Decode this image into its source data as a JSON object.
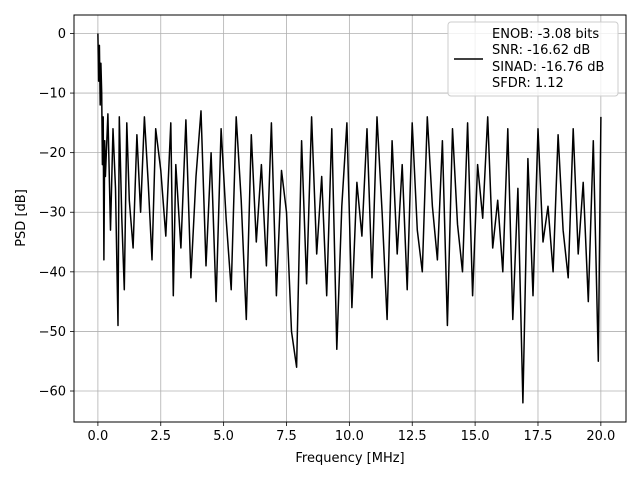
{
  "chart_data": {
    "type": "line",
    "title": "",
    "xlabel": "Frequency [MHz]",
    "ylabel": "PSD [dB]",
    "xlim": [
      -0.95,
      21.0
    ],
    "ylim": [
      -65.2,
      3.1
    ],
    "grid": true,
    "legend_position": "top-right",
    "x_ticks": [
      0.0,
      2.5,
      5.0,
      7.5,
      10.0,
      12.5,
      15.0,
      17.5,
      20.0
    ],
    "x_tick_labels": [
      "0.0",
      "2.5",
      "5.0",
      "7.5",
      "10.0",
      "12.5",
      "15.0",
      "17.5",
      "20.0"
    ],
    "y_ticks": [
      0,
      -10,
      -20,
      -30,
      -40,
      -50,
      -60
    ],
    "y_tick_labels": [
      "0",
      "−10",
      "−20",
      "−30",
      "−40",
      "−50",
      "−60"
    ],
    "series": [
      {
        "color": "#000000",
        "description": "noise-like PSD trace, peak 0 dB near 0 MHz, floor mostly between -13 and -35 dB",
        "x": [
          0.0,
          0.03,
          0.06,
          0.09,
          0.12,
          0.15,
          0.18,
          0.21,
          0.24,
          0.27,
          0.3,
          0.4,
          0.5,
          0.6,
          0.7,
          0.8,
          0.85,
          0.95,
          1.05,
          1.15,
          1.25,
          1.4,
          1.55,
          1.7,
          1.85,
          2.0,
          2.15,
          2.3,
          2.5,
          2.7,
          2.9,
          3.0,
          3.1,
          3.3,
          3.5,
          3.7,
          3.9,
          4.1,
          4.3,
          4.5,
          4.7,
          4.9,
          5.1,
          5.3,
          5.5,
          5.7,
          5.9,
          6.1,
          6.3,
          6.5,
          6.7,
          6.9,
          7.1,
          7.3,
          7.5,
          7.7,
          7.9,
          8.1,
          8.3,
          8.5,
          8.7,
          8.9,
          9.1,
          9.3,
          9.5,
          9.7,
          9.9,
          10.1,
          10.3,
          10.5,
          10.7,
          10.9,
          11.1,
          11.3,
          11.5,
          11.7,
          11.9,
          12.1,
          12.3,
          12.5,
          12.7,
          12.9,
          13.1,
          13.3,
          13.5,
          13.7,
          13.9,
          14.1,
          14.3,
          14.5,
          14.7,
          14.9,
          15.1,
          15.3,
          15.5,
          15.7,
          15.9,
          16.1,
          16.3,
          16.5,
          16.7,
          16.9,
          17.1,
          17.3,
          17.5,
          17.7,
          17.9,
          18.1,
          18.3,
          18.5,
          18.7,
          18.9,
          19.1,
          19.3,
          19.5,
          19.7,
          19.9,
          20.0
        ],
        "y": [
          0.0,
          -8.0,
          -2.0,
          -12.0,
          -5.0,
          -10.0,
          -22.0,
          -14.0,
          -38.0,
          -18.0,
          -24.0,
          -13.5,
          -33.0,
          -16.0,
          -26.0,
          -49.0,
          -14.0,
          -31.0,
          -43.0,
          -15.0,
          -28.0,
          -36.0,
          -17.0,
          -30.0,
          -14.0,
          -25.0,
          -38.0,
          -16.0,
          -23.0,
          -34.0,
          -15.0,
          -44.0,
          -22.0,
          -36.0,
          -14.5,
          -41.0,
          -24.0,
          -13.0,
          -39.0,
          -20.0,
          -45.0,
          -16.0,
          -31.0,
          -43.0,
          -14.0,
          -28.0,
          -48.0,
          -17.0,
          -35.0,
          -22.0,
          -39.0,
          -15.0,
          -44.0,
          -23.0,
          -30.0,
          -50.0,
          -56.0,
          -18.0,
          -42.0,
          -14.0,
          -37.0,
          -24.0,
          -44.0,
          -16.0,
          -53.0,
          -29.0,
          -15.0,
          -46.0,
          -25.0,
          -34.0,
          -16.0,
          -41.0,
          -14.0,
          -30.0,
          -48.0,
          -18.0,
          -37.0,
          -22.0,
          -43.0,
          -15.0,
          -33.0,
          -40.0,
          -14.0,
          -29.0,
          -38.0,
          -18.0,
          -49.0,
          -16.0,
          -32.0,
          -40.0,
          -15.0,
          -44.0,
          -22.0,
          -31.0,
          -14.0,
          -36.0,
          -28.0,
          -40.0,
          -16.0,
          -48.0,
          -26.0,
          -62.0,
          -21.0,
          -44.0,
          -16.0,
          -35.0,
          -29.0,
          -40.0,
          -17.0,
          -33.0,
          -41.0,
          -16.0,
          -37.0,
          -25.0,
          -45.0,
          -18.0,
          -55.0,
          -14.0
        ]
      }
    ],
    "legend": {
      "entries": [
        "ENOB: -3.08 bits",
        "SNR: -16.62 dB",
        "SINAD: -16.76 dB",
        "SFDR: 1.12"
      ]
    }
  }
}
